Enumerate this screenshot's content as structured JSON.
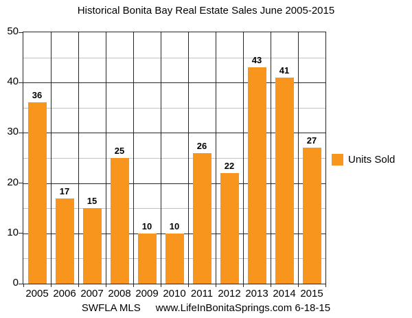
{
  "title": "Historical Bonita Bay Real Estate Sales June 2005-2015",
  "legend": {
    "label": "Units Sold"
  },
  "footer": {
    "source": "SWFLA MLS",
    "site": "www.LifeInBonitaSprings.com 6-18-15"
  },
  "colors": {
    "bar": "#F8951D",
    "major_grid": "#262626",
    "minor_grid": "#C0C0C0",
    "axis": "#262626",
    "background": "#FFFFFF",
    "text": "#000000"
  },
  "chart_data": {
    "type": "bar",
    "title": "Historical Bonita Bay Real Estate Sales June 2005-2015",
    "categories": [
      "2005",
      "2006",
      "2007",
      "2008",
      "2009",
      "2010",
      "2011",
      "2012",
      "2013",
      "2014",
      "2015"
    ],
    "series": [
      {
        "name": "Units Sold",
        "values": [
          36,
          17,
          15,
          25,
          10,
          10,
          26,
          22,
          43,
          41,
          27
        ]
      }
    ],
    "xlabel": "",
    "ylabel": "",
    "ylim": [
      0,
      50
    ],
    "y_major_ticks": [
      0,
      10,
      20,
      30,
      40,
      50
    ],
    "y_minor_step": 5,
    "grid": "horizontal major dark, horizontal minor light, vertical column lines dark, drawn behind bars",
    "legend_position": "right-middle",
    "value_labels": true
  }
}
